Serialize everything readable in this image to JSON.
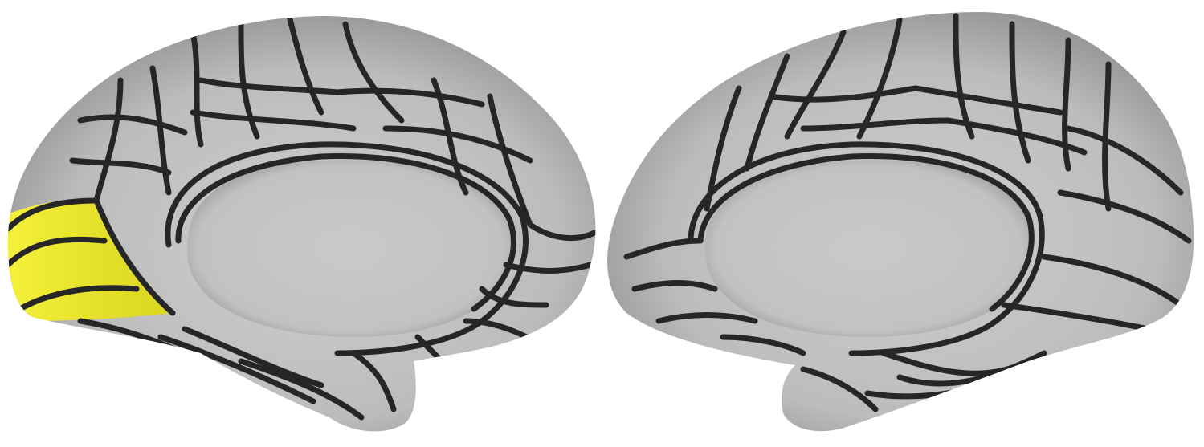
{
  "figure": {
    "background": "#ffffff",
    "hemispheres": [
      {
        "name": "left-hemisphere-medial-view",
        "highlighted_region": "occipital-pole"
      },
      {
        "name": "right-hemisphere-medial-view",
        "highlighted_region": ""
      }
    ],
    "colors": {
      "surface": "#bdbdbd",
      "surface_light": "#cfcfcf",
      "surface_shadow": "#8a8a8a",
      "borders": "#262626",
      "highlight": "#f3ee2f"
    }
  }
}
